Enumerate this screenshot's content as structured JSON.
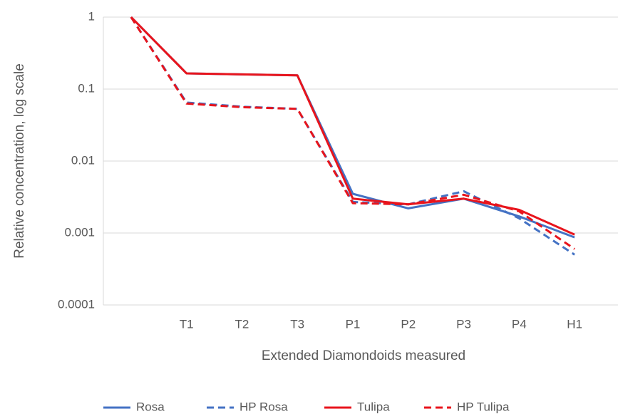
{
  "chart_data": {
    "type": "line",
    "x_label": "Extended Diamondoids measured",
    "y_label": "Relative concentration, log scale",
    "categories": [
      null,
      "T1",
      "T2",
      "T3",
      "P1",
      "P2",
      "P3",
      "P4",
      "H1"
    ],
    "log_scale": true,
    "grid": true,
    "legend": "bottom",
    "ylim": [
      0.0001,
      1
    ],
    "yticks": [
      0.0001,
      0.001,
      0.01,
      0.1,
      1
    ],
    "series": [
      {
        "name": "Rosa",
        "color": "#4472c4",
        "line_style": "solid",
        "values": [
          1,
          0.165,
          0.16,
          0.155,
          0.0035,
          0.0022,
          0.003,
          0.0017,
          0.00087
        ]
      },
      {
        "name": "HP Rosa",
        "color": "#4472c4",
        "line_style": "dashed",
        "values": [
          1,
          0.065,
          0.057,
          0.053,
          0.0027,
          0.0025,
          0.0038,
          0.0016,
          0.0005
        ]
      },
      {
        "name": "Tulipa",
        "color": "#e8141c",
        "line_style": "solid",
        "values": [
          1,
          0.165,
          0.16,
          0.155,
          0.003,
          0.0025,
          0.003,
          0.0021,
          0.00095
        ]
      },
      {
        "name": "HP Tulipa",
        "color": "#e8141c",
        "line_style": "dashed",
        "values": [
          1,
          0.063,
          0.056,
          0.053,
          0.0026,
          0.0025,
          0.0034,
          0.002,
          0.0006
        ]
      }
    ]
  }
}
